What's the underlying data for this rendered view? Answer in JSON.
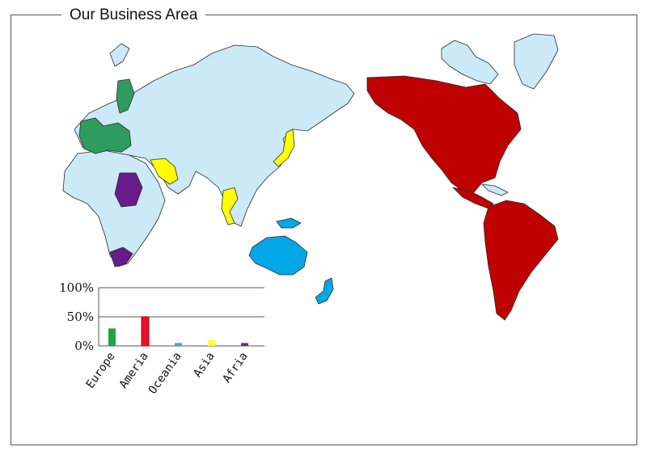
{
  "title": "Our Business Area",
  "colors": {
    "land": "#cce9f8",
    "europe": "#2e9c5e",
    "america": "#c00000",
    "oceania": "#00a8e8",
    "asia": "#ffff00",
    "africa": "#6a1b8a",
    "outline": "#2a2a2a"
  },
  "chart_data": {
    "type": "bar",
    "categories": [
      "Europe",
      "Ameria",
      "Oceania",
      "Asia",
      "Afria"
    ],
    "values": [
      30,
      50,
      5,
      10,
      5
    ],
    "colors": [
      "#1fa34a",
      "#e8102c",
      "#2ab0d8",
      "#ffff33",
      "#6b2a8c"
    ],
    "ylim": [
      0,
      100
    ],
    "yticks": [
      "0%",
      "50%",
      "100%"
    ],
    "grid": true
  }
}
